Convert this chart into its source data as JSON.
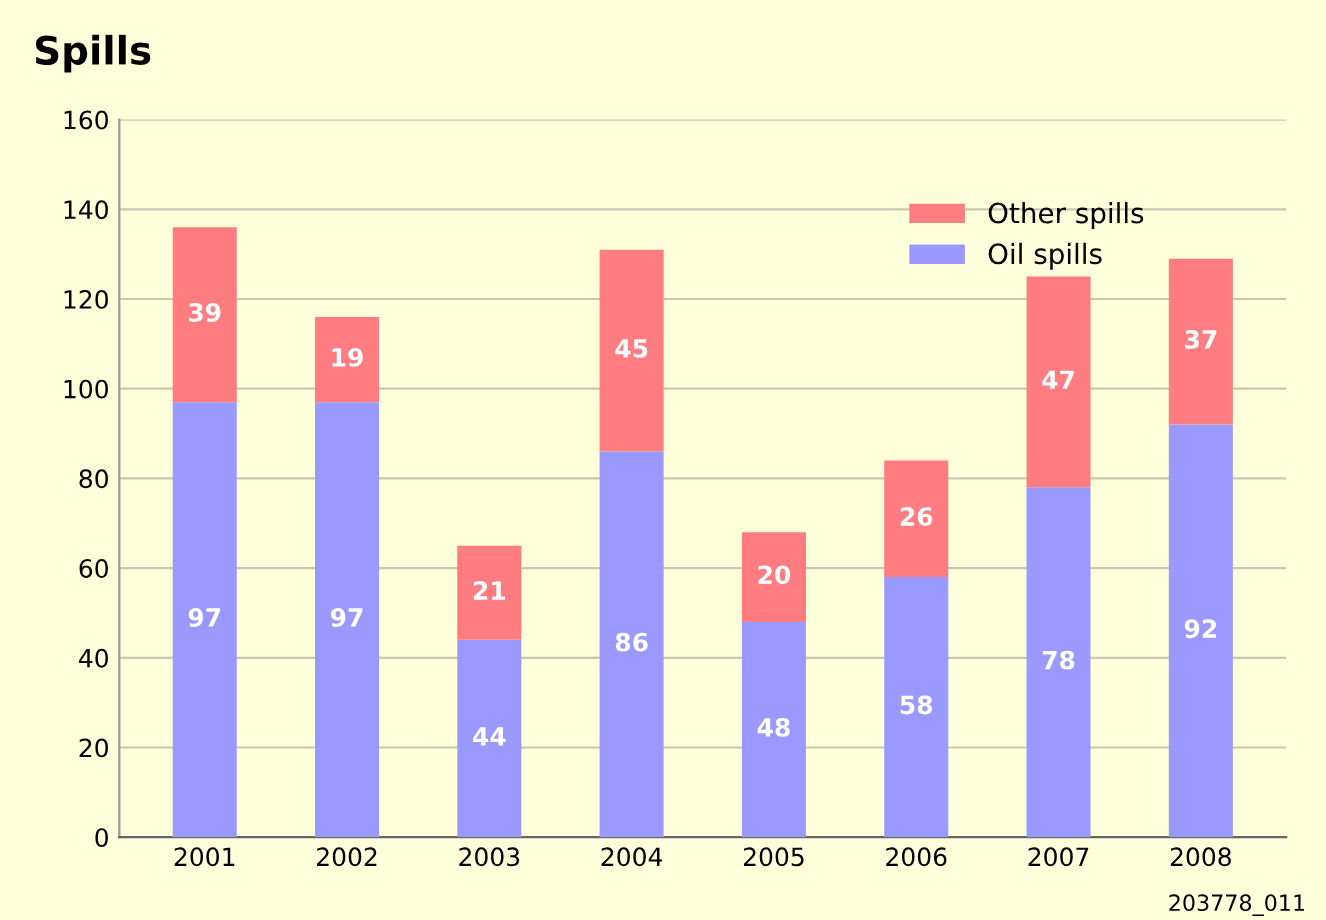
{
  "chart_data": {
    "type": "bar",
    "title": "Spills",
    "stacked": true,
    "categories": [
      "2001",
      "2002",
      "2003",
      "2004",
      "2005",
      "2006",
      "2007",
      "2008"
    ],
    "series": [
      {
        "name": "Oil spills",
        "color": "#9999ff",
        "values": [
          97,
          97,
          44,
          86,
          48,
          58,
          78,
          92
        ]
      },
      {
        "name": "Other spills",
        "color": "#ff7c80",
        "values": [
          39,
          19,
          21,
          45,
          20,
          26,
          47,
          37
        ]
      }
    ],
    "ylim": [
      0,
      160
    ],
    "yticks": [
      0,
      20,
      40,
      60,
      80,
      100,
      120,
      140,
      160
    ],
    "grid": "y",
    "legend": "top right",
    "data_labels": true,
    "annotations": [
      "203778_011"
    ]
  }
}
